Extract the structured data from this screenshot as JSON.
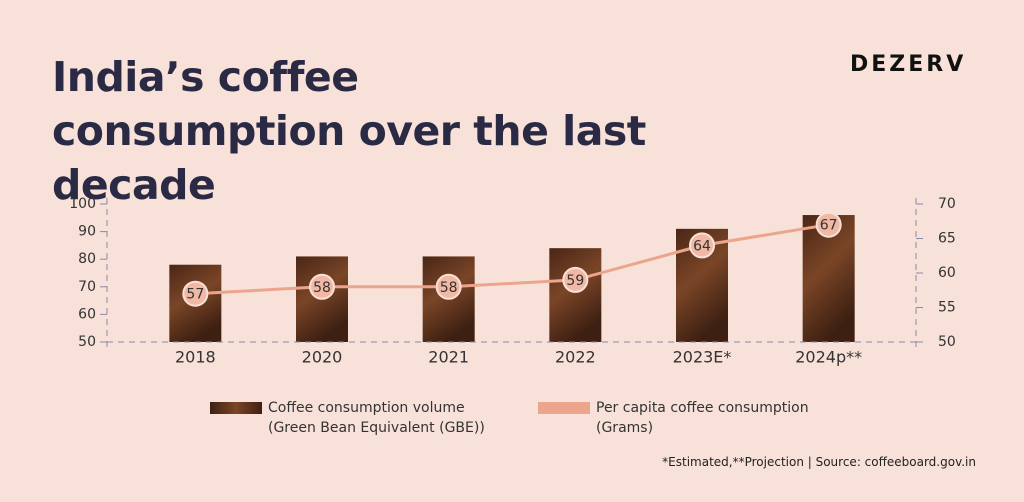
{
  "brand": "DEZERV",
  "chart_data": {
    "type": "bar-line",
    "title": "India’s coffee consumption over the last decade",
    "categories": [
      "2018",
      "2020",
      "2021",
      "2022",
      "2023E*",
      "2024p**"
    ],
    "series": [
      {
        "name": "Coffee consumption volume (Green Bean Equivalent (GBE))",
        "type": "bar",
        "color": "#5a3020",
        "values": [
          78,
          81,
          81,
          84,
          91,
          96
        ]
      },
      {
        "name": "Per capita coffee consumption (Grams)",
        "type": "line",
        "axis": "y2",
        "color": "#eba58d",
        "values": [
          57,
          58,
          58,
          59,
          64,
          67
        ]
      }
    ],
    "ylim": [
      50,
      100
    ],
    "yticks": [
      50,
      60,
      70,
      80,
      90,
      100
    ],
    "y2lim": [
      50,
      70
    ],
    "y2ticks": [
      50,
      55,
      60,
      65,
      70
    ],
    "grid": false,
    "footnote": "*Estimated,**Projection | Source: coffeeboard.gov.in"
  }
}
